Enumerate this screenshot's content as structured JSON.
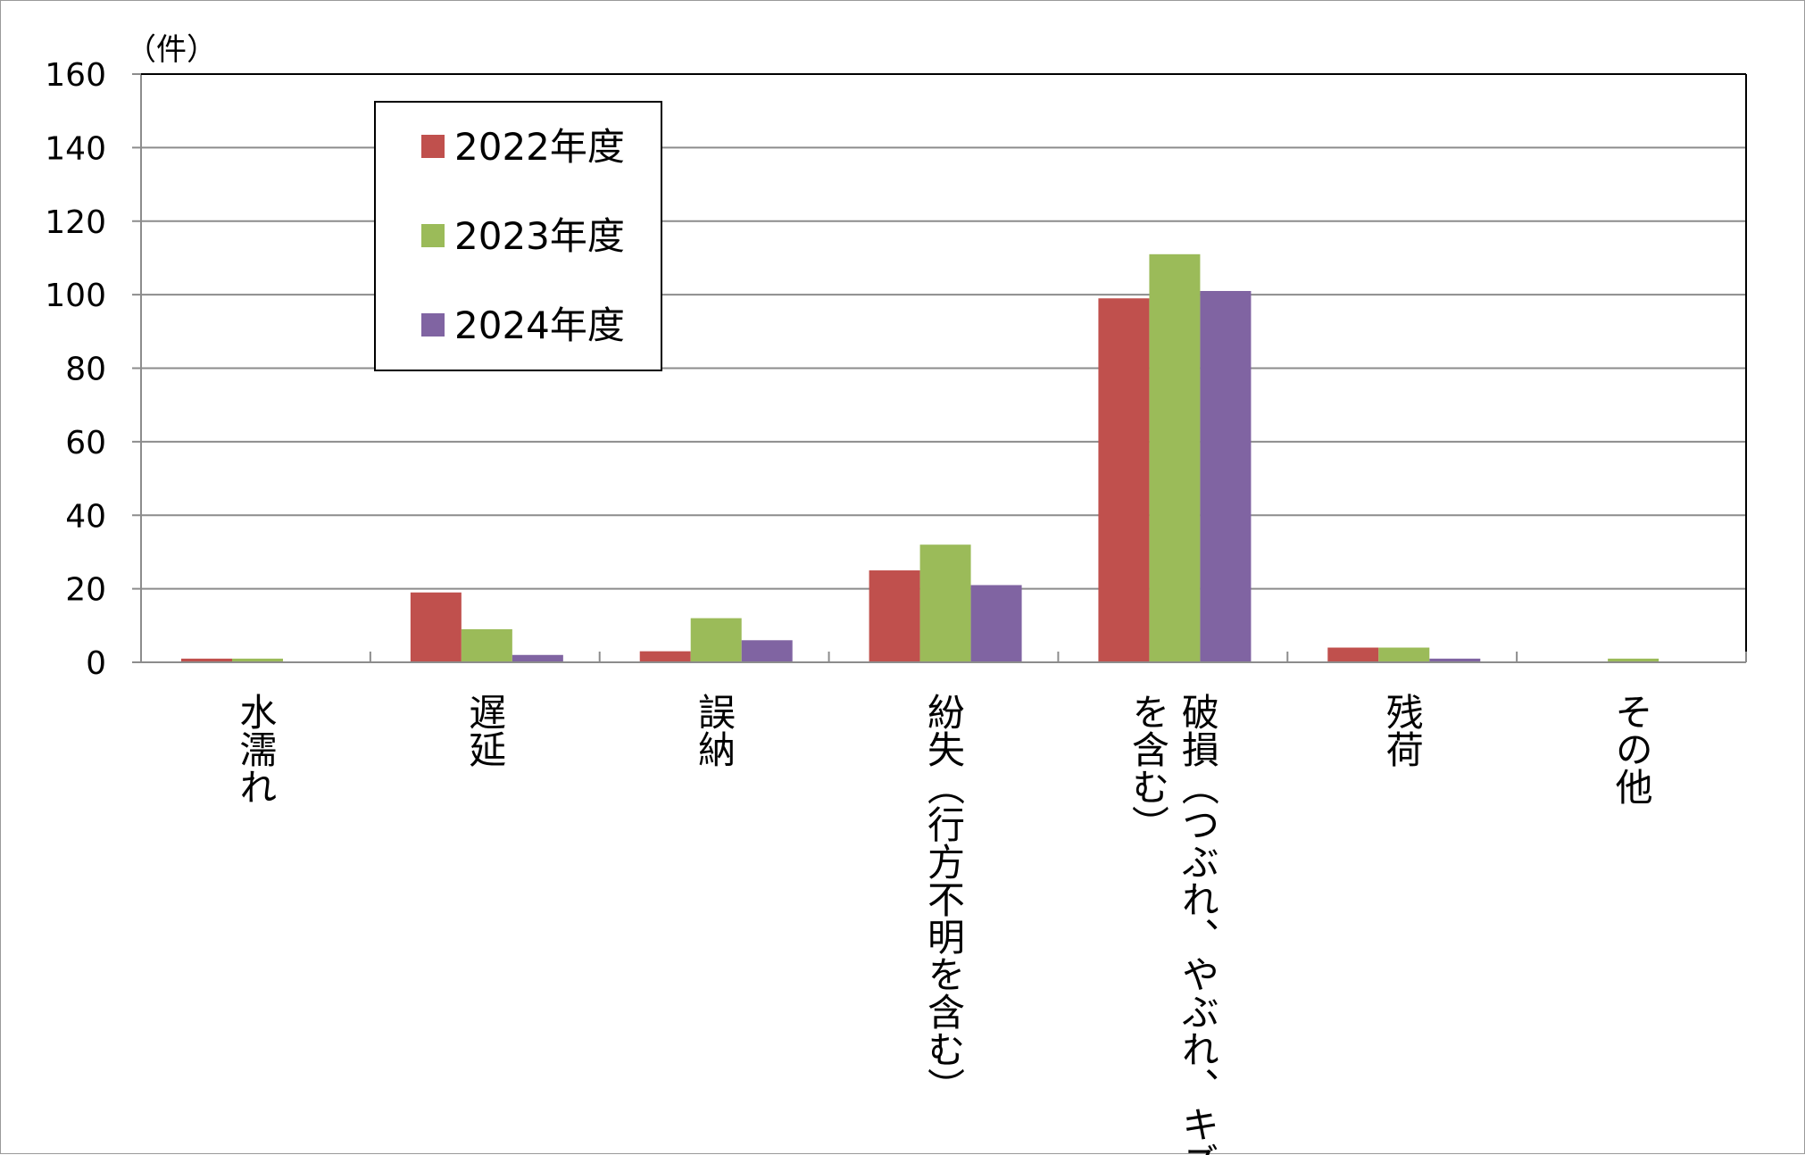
{
  "chart_data": {
    "type": "bar",
    "title": "",
    "xlabel": "",
    "ylabel": "（件）",
    "ylim": [
      0,
      160
    ],
    "yticks": [
      0,
      20,
      40,
      60,
      80,
      100,
      120,
      140,
      160
    ],
    "grid": true,
    "legend_position": "top-left",
    "categories": [
      "水濡れ",
      "遅延",
      "誤納",
      "紛失（行方不明を含む）",
      "破損（つぶれ、やぶれ、キズを含む）",
      "残荷",
      "その他"
    ],
    "series": [
      {
        "name": "2022年度",
        "color": "#c0504d",
        "values": [
          1,
          19,
          3,
          25,
          99,
          4,
          0
        ]
      },
      {
        "name": "2023年度",
        "color": "#9bbb59",
        "values": [
          1,
          9,
          12,
          32,
          111,
          4,
          1
        ]
      },
      {
        "name": "2024年度",
        "color": "#8064a2",
        "values": [
          0,
          2,
          6,
          21,
          101,
          1,
          0
        ]
      }
    ]
  }
}
